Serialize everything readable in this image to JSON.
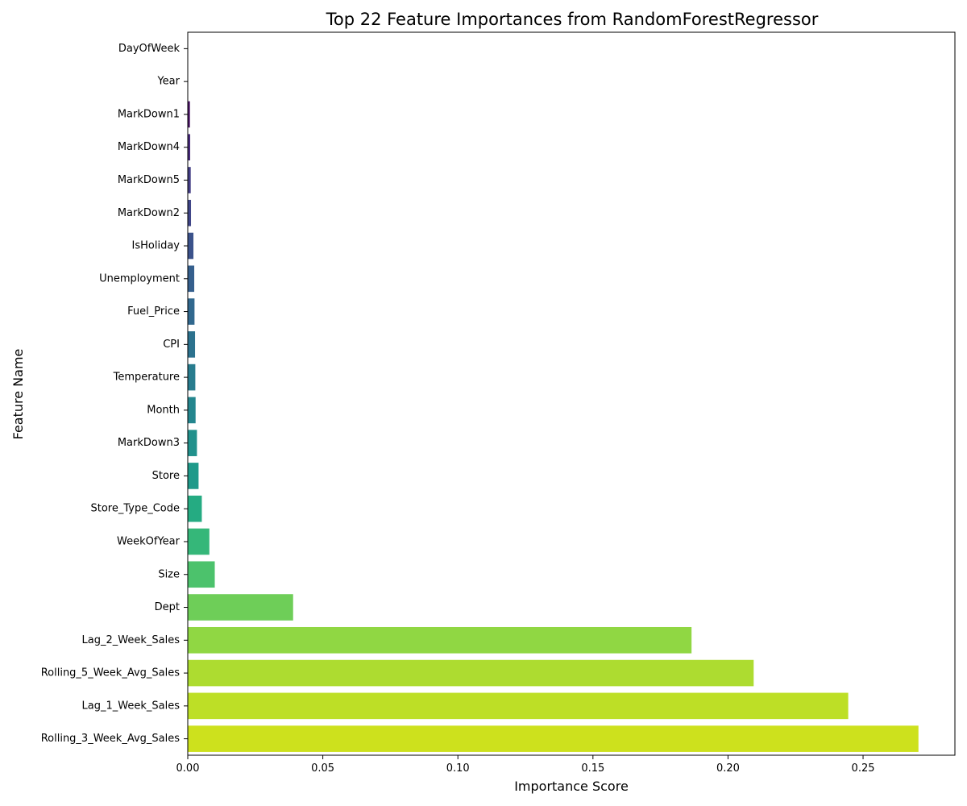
{
  "chart_data": {
    "type": "bar",
    "orientation": "horizontal",
    "title": "Top 22 Feature Importances from RandomForestRegressor",
    "xlabel": "Importance Score",
    "ylabel": "Feature Name",
    "xlim": [
      0,
      0.284
    ],
    "xticks": [
      0.0,
      0.05,
      0.1,
      0.15,
      0.2,
      0.25
    ],
    "xtick_labels": [
      "0.00",
      "0.05",
      "0.10",
      "0.15",
      "0.20",
      "0.25"
    ],
    "grid": false,
    "legend": "none",
    "colormap": "viridis",
    "categories": [
      "DayOfWeek",
      "Year",
      "MarkDown1",
      "MarkDown4",
      "MarkDown5",
      "MarkDown2",
      "IsHoliday",
      "Unemployment",
      "Fuel_Price",
      "CPI",
      "Temperature",
      "Month",
      "MarkDown3",
      "Store",
      "Store_Type_Code",
      "WeekOfYear",
      "Size",
      "Dept",
      "Lag_2_Week_Sales",
      "Rolling_5_Week_Avg_Sales",
      "Lag_1_Week_Sales",
      "Rolling_3_Week_Avg_Sales"
    ],
    "values": [
      0.0,
      0.0,
      0.0008,
      0.0009,
      0.0011,
      0.0012,
      0.0021,
      0.0024,
      0.0025,
      0.0027,
      0.0028,
      0.0029,
      0.0034,
      0.004,
      0.0052,
      0.008,
      0.01,
      0.039,
      0.1865,
      0.2095,
      0.2445,
      0.2705
    ],
    "colors": [
      "#440154",
      "#46085c",
      "#471164",
      "#472a7a",
      "#433e85",
      "#404688",
      "#3b528b",
      "#355f8d",
      "#31688e",
      "#2c728e",
      "#287c8e",
      "#24868e",
      "#21918c",
      "#1f9a8a",
      "#25ab82",
      "#35b779",
      "#4cc26c",
      "#6ece58",
      "#90d743",
      "#addc30",
      "#bddf26",
      "#cde11d"
    ]
  }
}
